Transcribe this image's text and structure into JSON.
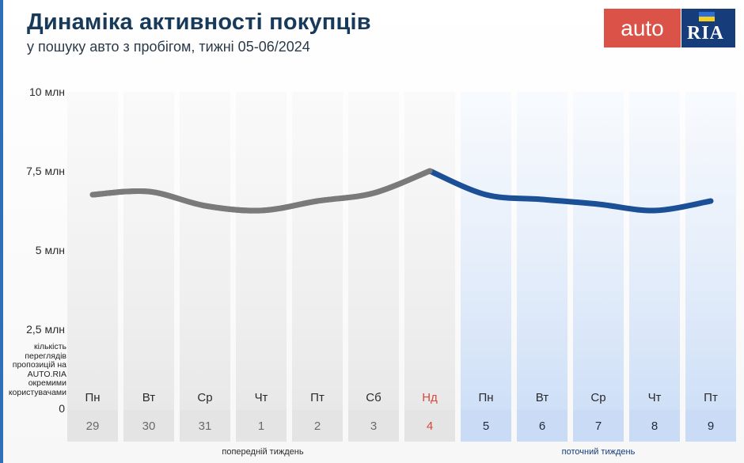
{
  "title": "Динаміка активності покупців",
  "subtitle": "у пошуку авто з пробігом, тижні 05-06/2024",
  "logo": {
    "auto": "auto",
    "ria": "RIA"
  },
  "y_note": "кількість переглядів пропозицій на AUTO.RIA окремими користувачами",
  "colors": {
    "previous_line": "#7a7a7a",
    "current_line": "#1b4f96",
    "sunday": "#d9473c",
    "brand_red": "#db5249",
    "brand_blue": "#163c7a"
  },
  "chart_data": {
    "type": "line",
    "title": "Динаміка активності покупців",
    "subtitle": "у пошуку авто з пробігом, тижні 05-06/2024",
    "ylabel": "кількість переглядів пропозицій на AUTO.RIA окремими користувачами",
    "ylim": [
      0,
      10000000
    ],
    "y_ticks": [
      {
        "value": 0,
        "label": "0"
      },
      {
        "value": 2500000,
        "label": "2,5 млн"
      },
      {
        "value": 5000000,
        "label": "5 млн"
      },
      {
        "value": 7500000,
        "label": "7,5 млн"
      },
      {
        "value": 10000000,
        "label": "10 млн"
      }
    ],
    "categories": [
      {
        "weekday": "Пн",
        "date": "29",
        "week": "previous"
      },
      {
        "weekday": "Вт",
        "date": "30",
        "week": "previous"
      },
      {
        "weekday": "Ср",
        "date": "31",
        "week": "previous"
      },
      {
        "weekday": "Чт",
        "date": "1",
        "week": "previous"
      },
      {
        "weekday": "Пт",
        "date": "2",
        "week": "previous"
      },
      {
        "weekday": "Сб",
        "date": "3",
        "week": "previous"
      },
      {
        "weekday": "Нд",
        "date": "4",
        "week": "previous",
        "highlight": true
      },
      {
        "weekday": "Пн",
        "date": "5",
        "week": "current"
      },
      {
        "weekday": "Вт",
        "date": "6",
        "week": "current"
      },
      {
        "weekday": "Ср",
        "date": "7",
        "week": "current"
      },
      {
        "weekday": "Чт",
        "date": "8",
        "week": "current"
      },
      {
        "weekday": "Пт",
        "date": "9",
        "week": "current"
      }
    ],
    "values": [
      6750000,
      6850000,
      6400000,
      6250000,
      6550000,
      6800000,
      7500000,
      6750000,
      6600000,
      6450000,
      6250000,
      6550000
    ],
    "week_labels": {
      "previous": "попередній тиждень",
      "current": "поточний тиждень"
    },
    "grid": false,
    "legend": "none"
  }
}
